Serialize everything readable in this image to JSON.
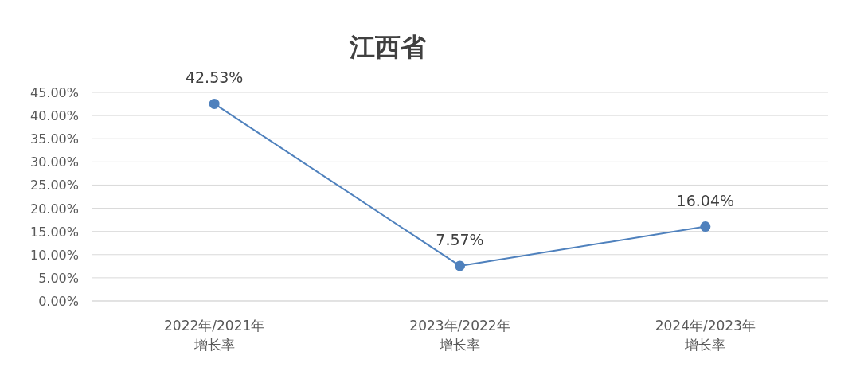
{
  "chart_data": {
    "type": "line",
    "title": "江西省",
    "categories": [
      "2022年/2021年增长率",
      "2023年/2022年增长率",
      "2024年/2023年增长率"
    ],
    "series": [
      {
        "color": "#4f81bd",
        "values": [
          42.53,
          7.57,
          16.04
        ],
        "value_labels": [
          "42.53%",
          "7.57%",
          "16.04%"
        ]
      }
    ],
    "ylim": [
      0,
      45
    ],
    "yticks": [
      {
        "value": 0,
        "label": "0.00%"
      },
      {
        "value": 5,
        "label": "5.00%"
      },
      {
        "value": 10,
        "label": "10.00%"
      },
      {
        "value": 15,
        "label": "15.00%"
      },
      {
        "value": 20,
        "label": "20.00%"
      },
      {
        "value": 25,
        "label": "25.00%"
      },
      {
        "value": 30,
        "label": "30.00%"
      },
      {
        "value": 35,
        "label": "35.00%"
      },
      {
        "value": 40,
        "label": "40.00%"
      },
      {
        "value": 45,
        "label": "45.00%"
      }
    ],
    "grid": "y",
    "marker": "circle",
    "line_style": "solid"
  }
}
